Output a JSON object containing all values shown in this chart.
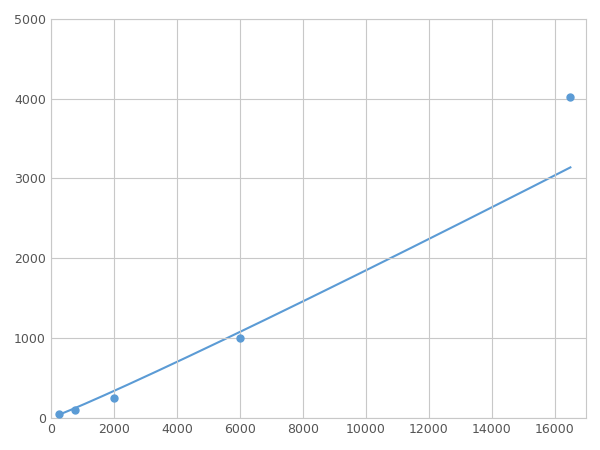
{
  "x_points": [
    250,
    750,
    2000,
    6000,
    16500
  ],
  "y_points": [
    50,
    100,
    250,
    1000,
    4020
  ],
  "line_color": "#5b9bd5",
  "marker_color": "#5b9bd5",
  "marker_size": 5,
  "line_width": 1.5,
  "xlim": [
    0,
    17000
  ],
  "ylim": [
    0,
    5000
  ],
  "xticks": [
    0,
    2000,
    4000,
    6000,
    8000,
    10000,
    12000,
    14000,
    16000
  ],
  "yticks": [
    0,
    1000,
    2000,
    3000,
    4000,
    5000
  ],
  "grid_color": "#c8c8c8",
  "grid_alpha": 1.0,
  "background_color": "#ffffff",
  "fig_width": 6.0,
  "fig_height": 4.5,
  "dpi": 100
}
